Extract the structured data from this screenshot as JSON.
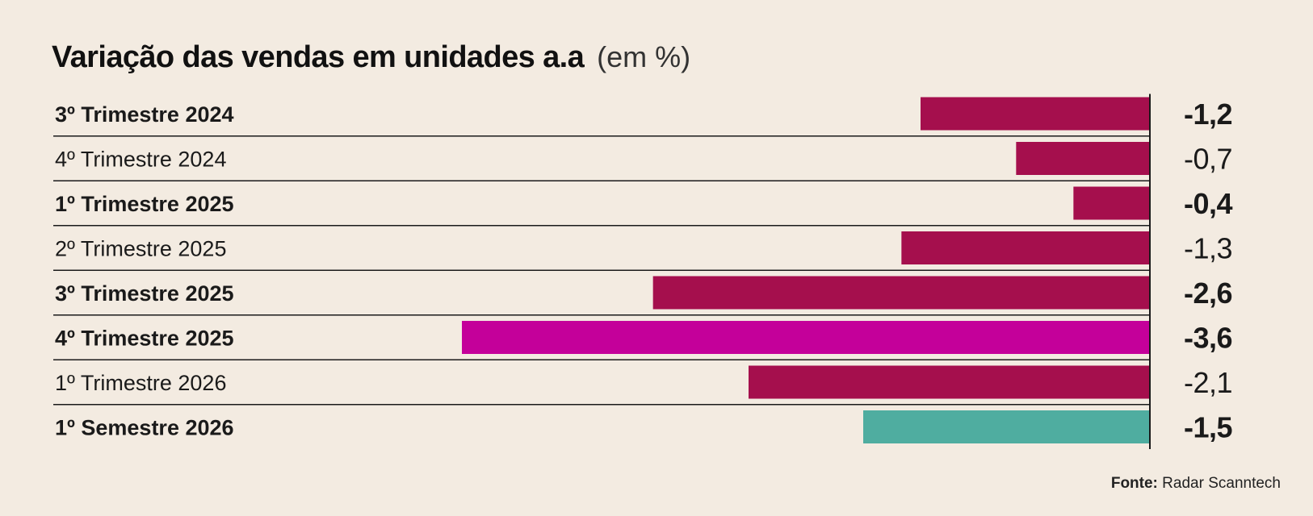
{
  "chart_data": {
    "type": "bar",
    "orientation": "horizontal",
    "title": "Variação das vendas em unidades a.a",
    "unit_label": "(em %)",
    "categories": [
      "3º Trimestre 2024",
      "4º Trimestre 2024",
      "1º Trimestre 2025",
      "2º Trimestre 2025",
      "3º Trimestre 2025",
      "4º Trimestre 2025",
      "1º Trimestre 2026",
      "1º Semestre 2026"
    ],
    "values": [
      -1.2,
      -0.7,
      -0.4,
      -1.3,
      -2.6,
      -3.6,
      -2.1,
      -1.5
    ],
    "value_labels": [
      "-1,2",
      "-0,7",
      "-0,4",
      "-1,3",
      "-2,6",
      "-3,6",
      "-2,1",
      "-1,5"
    ],
    "bold_rows": [
      true,
      false,
      true,
      false,
      true,
      true,
      false,
      true
    ],
    "bar_colors": [
      "#a50f4d",
      "#a50f4d",
      "#a50f4d",
      "#a50f4d",
      "#a50f4d",
      "#c4009a",
      "#a50f4d",
      "#4fada0"
    ],
    "xlim": [
      -3.6,
      0
    ],
    "grid": false,
    "legend": "none",
    "source_label": "Fonte:",
    "source_text": "Radar Scanntech"
  }
}
